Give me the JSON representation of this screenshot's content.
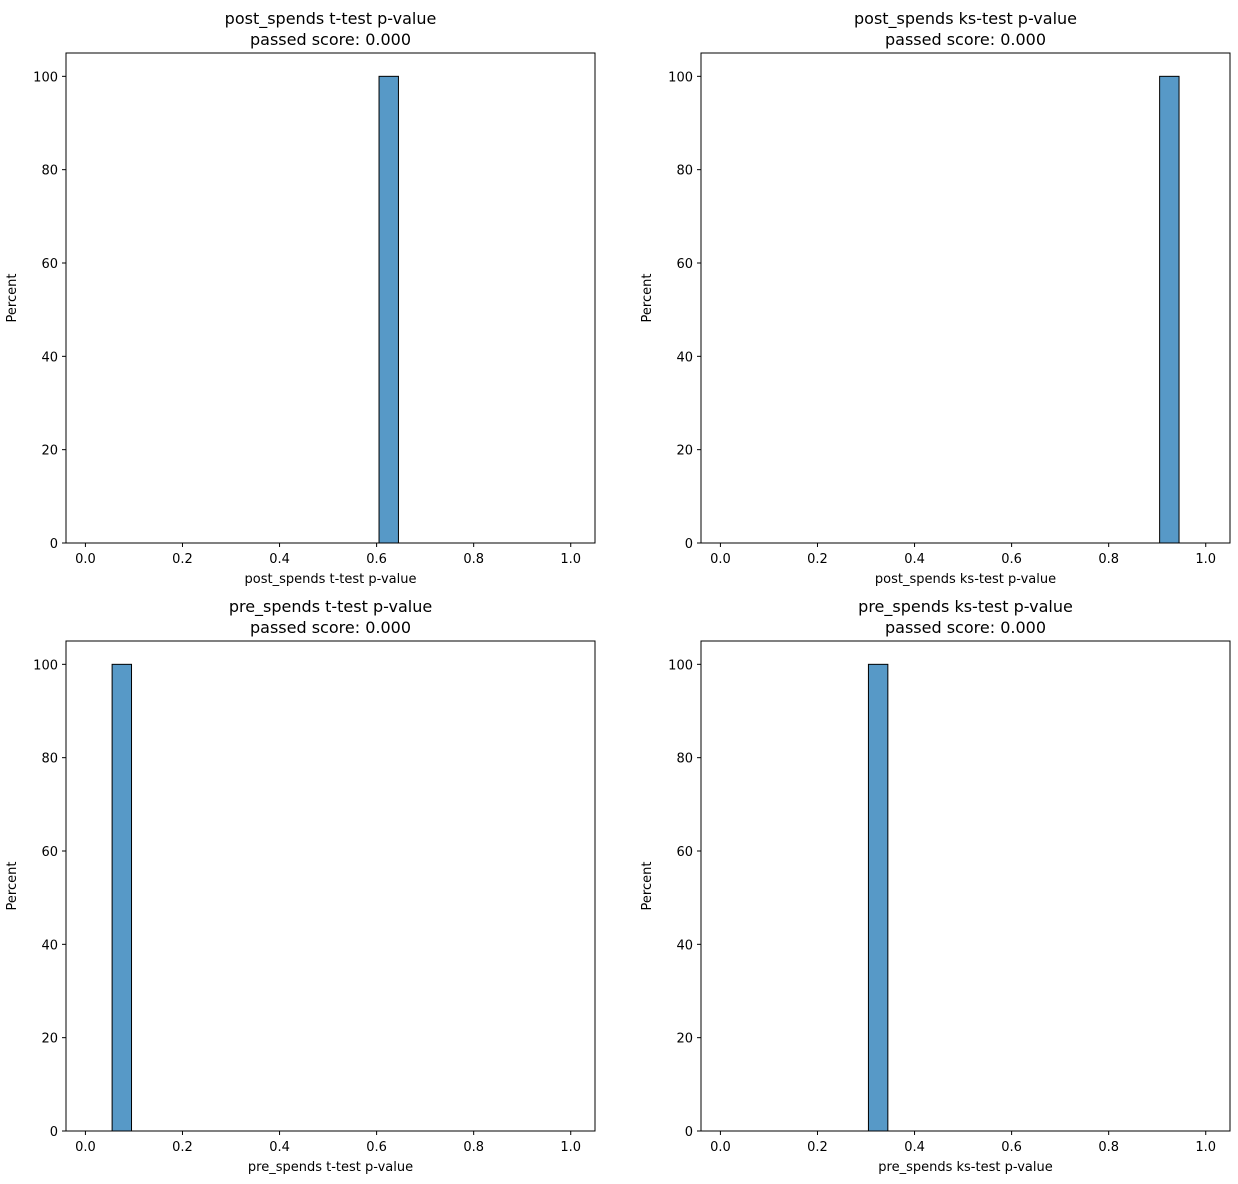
{
  "chart_data": [
    {
      "type": "bar",
      "title": "post_spends t-test p-value",
      "subtitle": "passed score: 0.000",
      "xlabel": "post_spends t-test p-value",
      "ylabel": "Percent",
      "xlim": [
        -0.04,
        1.05
      ],
      "ylim": [
        0,
        105
      ],
      "xticks": [
        "0.0",
        "0.2",
        "0.4",
        "0.6",
        "0.8",
        "1.0"
      ],
      "yticks": [
        "0",
        "20",
        "40",
        "60",
        "80",
        "100"
      ],
      "grid": false,
      "bin_width": 0.04,
      "bins": [
        {
          "x0": 0.605,
          "x1": 0.645,
          "value": 100
        }
      ],
      "color": "#5799c7"
    },
    {
      "type": "bar",
      "title": "post_spends ks-test p-value",
      "subtitle": "passed score: 0.000",
      "xlabel": "post_spends ks-test p-value",
      "ylabel": "Percent",
      "xlim": [
        -0.04,
        1.05
      ],
      "ylim": [
        0,
        105
      ],
      "xticks": [
        "0.0",
        "0.2",
        "0.4",
        "0.6",
        "0.8",
        "1.0"
      ],
      "yticks": [
        "0",
        "20",
        "40",
        "60",
        "80",
        "100"
      ],
      "grid": false,
      "bin_width": 0.04,
      "bins": [
        {
          "x0": 0.905,
          "x1": 0.945,
          "value": 100
        }
      ],
      "color": "#5799c7"
    },
    {
      "type": "bar",
      "title": "pre_spends t-test p-value",
      "subtitle": "passed score: 0.000",
      "xlabel": "pre_spends t-test p-value",
      "ylabel": "Percent",
      "xlim": [
        -0.04,
        1.05
      ],
      "ylim": [
        0,
        105
      ],
      "xticks": [
        "0.0",
        "0.2",
        "0.4",
        "0.6",
        "0.8",
        "1.0"
      ],
      "yticks": [
        "0",
        "20",
        "40",
        "60",
        "80",
        "100"
      ],
      "grid": false,
      "bin_width": 0.04,
      "bins": [
        {
          "x0": 0.055,
          "x1": 0.095,
          "value": 100
        }
      ],
      "color": "#5799c7"
    },
    {
      "type": "bar",
      "title": "pre_spends ks-test p-value",
      "subtitle": "passed score: 0.000",
      "xlabel": "pre_spends ks-test p-value",
      "ylabel": "Percent",
      "xlim": [
        -0.04,
        1.05
      ],
      "ylim": [
        0,
        105
      ],
      "xticks": [
        "0.0",
        "0.2",
        "0.4",
        "0.6",
        "0.8",
        "1.0"
      ],
      "yticks": [
        "0",
        "20",
        "40",
        "60",
        "80",
        "100"
      ],
      "grid": false,
      "bin_width": 0.04,
      "bins": [
        {
          "x0": 0.305,
          "x1": 0.345,
          "value": 100
        }
      ],
      "color": "#5799c7"
    }
  ]
}
